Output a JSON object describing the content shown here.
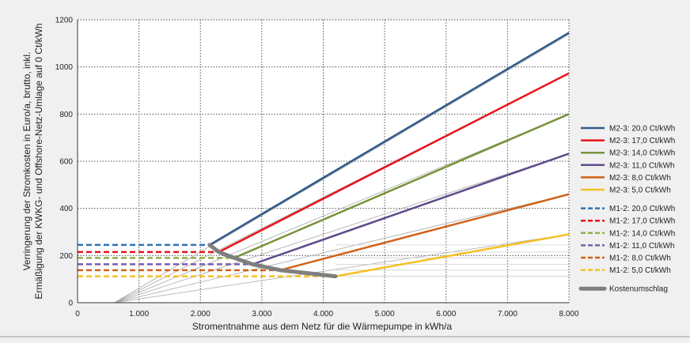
{
  "chart_data": {
    "type": "line",
    "title": "",
    "xlabel": "Stromentnahme aus dem Netz für die Wärmepumpe in kWh/a",
    "ylabel": [
      "Verringerung der Stromkosten  in Euro/a, brutto, inkl.",
      "Ermäßigung der KWKG- und Offshore-Netz-Umlage auf 0 Ct/kWh"
    ],
    "xlim": [
      0,
      8000
    ],
    "ylim": [
      0,
      1200
    ],
    "xticks": [
      0,
      1000,
      2000,
      3000,
      4000,
      5000,
      6000,
      7000,
      8000
    ],
    "xtick_labels": [
      "0",
      "1.000",
      "2.000",
      "3.000",
      "4.000",
      "5.000",
      "6.000",
      "7.000",
      "8.000"
    ],
    "yticks": [
      0,
      200,
      400,
      600,
      800,
      1000,
      1200
    ],
    "ytick_labels": [
      "0",
      "200",
      "400",
      "600",
      "800",
      "1000",
      "1200"
    ],
    "grid": "dotted",
    "legend_position": "right",
    "series": [
      {
        "name": "M2-3: 20,0 Ct/kWh",
        "color": "#2e5a88",
        "style": "solid",
        "x": [
          2150,
          8000
        ],
        "y": [
          245,
          1145
        ]
      },
      {
        "name": "M2-3: 17,0 Ct/kWh",
        "color": "#e8141b",
        "style": "solid",
        "x": [
          2300,
          8000
        ],
        "y": [
          215,
          973
        ]
      },
      {
        "name": "M2-3: 14,0 Ct/kWh",
        "color": "#77933c",
        "style": "solid",
        "x": [
          2550,
          8000
        ],
        "y": [
          190,
          800
        ]
      },
      {
        "name": "M2-3: 11,0 Ct/kWh",
        "color": "#5f4a8b",
        "style": "solid",
        "x": [
          2850,
          8000
        ],
        "y": [
          163,
          632
        ]
      },
      {
        "name": "M2-3: 8,0 Ct/kWh",
        "color": "#d0621a",
        "style": "solid",
        "x": [
          3300,
          8000
        ],
        "y": [
          138,
          460
        ]
      },
      {
        "name": "M2-3: 5,0 Ct/kWh",
        "color": "#f5c024",
        "style": "solid",
        "x": [
          4200,
          8000
        ],
        "y": [
          112,
          290
        ]
      },
      {
        "name": "M1-2: 20,0 Ct/kWh",
        "color": "#2e75b6",
        "style": "dashed",
        "x": [
          0,
          2150
        ],
        "y": [
          245,
          245
        ]
      },
      {
        "name": "M1-2: 17,0 Ct/kWh",
        "color": "#e8141b",
        "style": "dashed",
        "x": [
          0,
          2300
        ],
        "y": [
          215,
          215
        ]
      },
      {
        "name": "M1-2: 14,0 Ct/kWh",
        "color": "#8fb04a",
        "style": "dashed",
        "x": [
          0,
          2550
        ],
        "y": [
          190,
          190
        ]
      },
      {
        "name": "M1-2: 11,0 Ct/kWh",
        "color": "#7a5fae",
        "style": "dashed",
        "x": [
          0,
          2850
        ],
        "y": [
          163,
          163
        ]
      },
      {
        "name": "M1-2: 8,0 Ct/kWh",
        "color": "#d0621a",
        "style": "dashed",
        "x": [
          0,
          3300
        ],
        "y": [
          138,
          138
        ]
      },
      {
        "name": "M1-2: 5,0 Ct/kWh",
        "color": "#f5c024",
        "style": "dashed",
        "x": [
          0,
          4200
        ],
        "y": [
          112,
          112
        ]
      },
      {
        "name": "Kostenumschlag",
        "color": "#7f7f7f",
        "style": "thick",
        "x": [
          2150,
          2300,
          2550,
          2850,
          3300,
          4200
        ],
        "y": [
          245,
          215,
          190,
          163,
          138,
          112
        ]
      }
    ],
    "helper_lines": [
      {
        "color": "#a6a6a6",
        "x": [
          600,
          8000
        ],
        "y": [
          0,
          1138
        ]
      },
      {
        "color": "#a6a6a6",
        "x": [
          600,
          8000
        ],
        "y": [
          0,
          973
        ]
      },
      {
        "color": "#a6a6a6",
        "x": [
          600,
          8000
        ],
        "y": [
          0,
          800
        ]
      },
      {
        "color": "#a6a6a6",
        "x": [
          600,
          8000
        ],
        "y": [
          0,
          632
        ]
      },
      {
        "color": "#a6a6a6",
        "x": [
          600,
          8000
        ],
        "y": [
          0,
          460
        ]
      },
      {
        "color": "#a6a6a6",
        "x": [
          600,
          8000
        ],
        "y": [
          0,
          290
        ]
      },
      {
        "color": "#d0d0d0",
        "x": [
          4200,
          8000
        ],
        "y": [
          245,
          245
        ]
      },
      {
        "color": "#d0d0d0",
        "x": [
          4200,
          8000
        ],
        "y": [
          215,
          215
        ]
      },
      {
        "color": "#d0d0d0",
        "x": [
          4200,
          8000
        ],
        "y": [
          190,
          190
        ]
      },
      {
        "color": "#d0d0d0",
        "x": [
          4200,
          8000
        ],
        "y": [
          163,
          163
        ]
      },
      {
        "color": "#d0d0d0",
        "x": [
          4200,
          8000
        ],
        "y": [
          138,
          138
        ]
      },
      {
        "color": "#d0d0d0",
        "x": [
          4200,
          8000
        ],
        "y": [
          112,
          112
        ]
      }
    ]
  }
}
